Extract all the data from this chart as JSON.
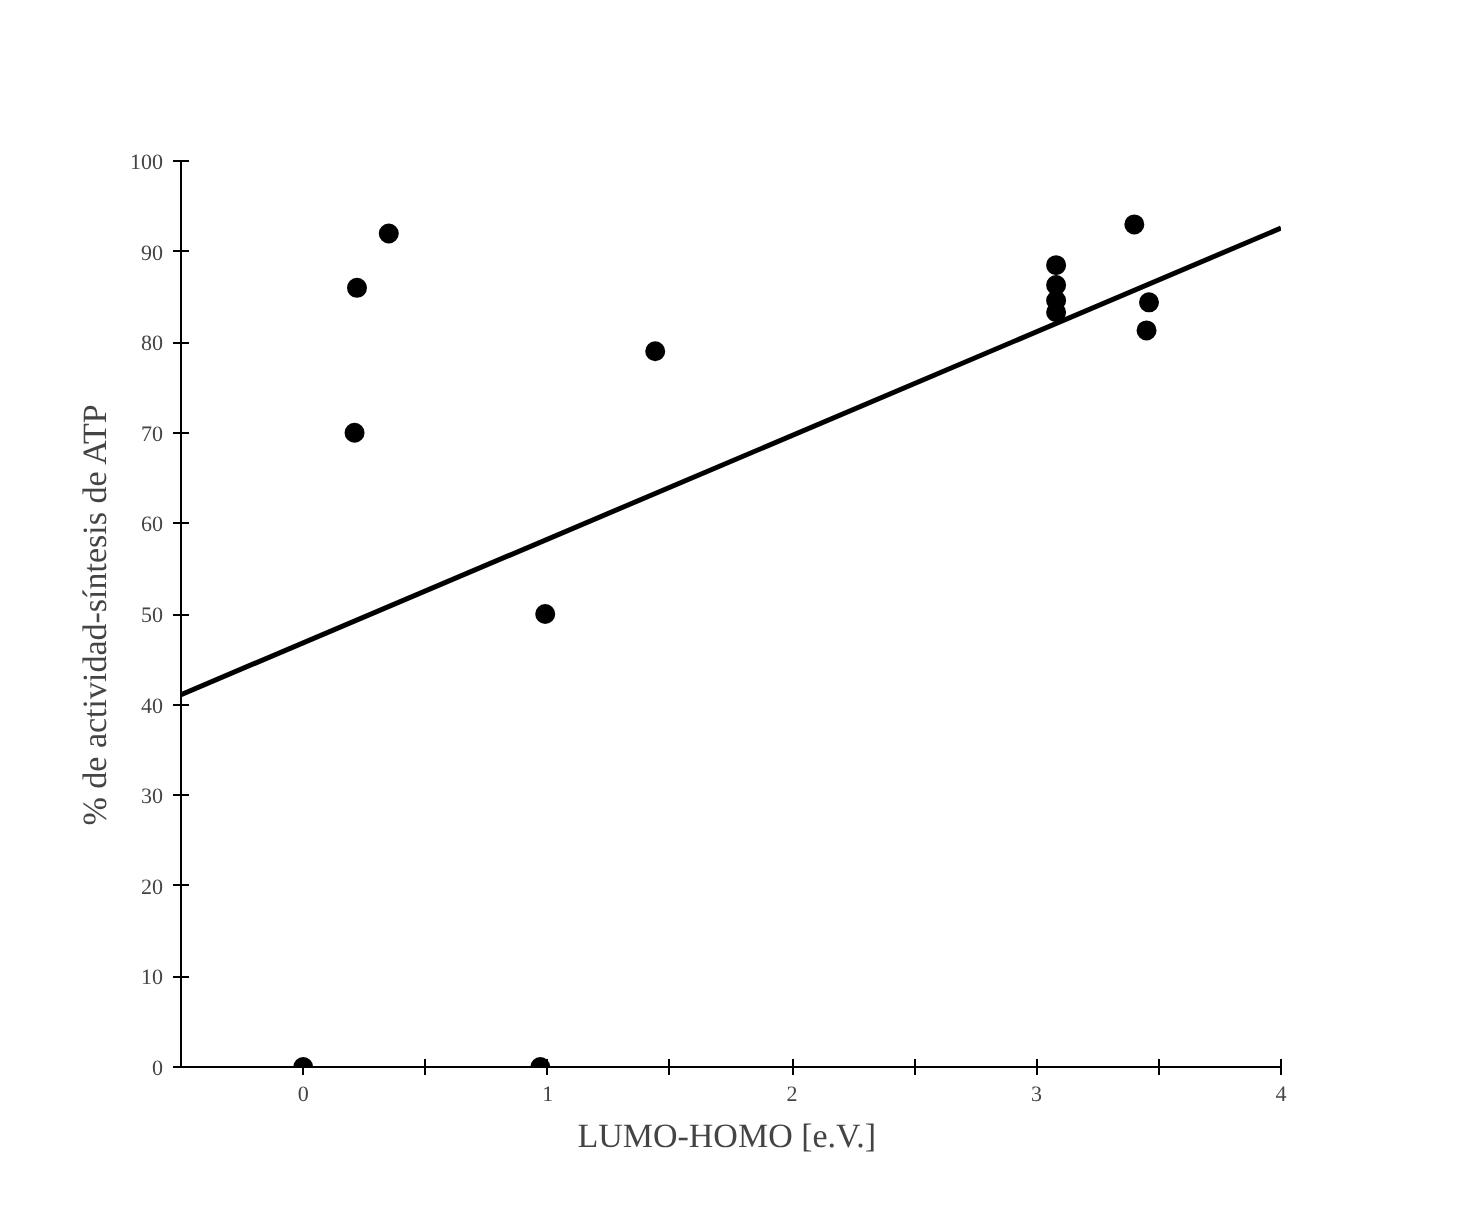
{
  "chart_data": {
    "type": "scatter",
    "xlabel": "LUMO-HOMO  [e.V.]",
    "ylabel": "% de actividad-síntesis de ATP",
    "xlim": [
      -0.5,
      4
    ],
    "ylim": [
      0,
      100
    ],
    "xticks": [
      0,
      {
        "value": 0.5,
        "label": null
      },
      1,
      {
        "value": 1.5,
        "label": null
      },
      2,
      {
        "value": 2.5,
        "label": null
      },
      3,
      {
        "value": 3.5,
        "label": null
      },
      4
    ],
    "yticks": [
      0,
      10,
      20,
      30,
      40,
      50,
      60,
      70,
      80,
      90,
      100
    ],
    "grid": false,
    "marker": "circle",
    "series": [
      {
        "color": "#000000",
        "x": [
          0,
          0.97,
          0.21,
          0.22,
          0.35,
          0.99,
          1.44,
          3.08,
          3.08,
          3.08,
          3.08,
          3.4,
          3.46,
          3.45
        ],
        "values": [
          0,
          0,
          70,
          86,
          92,
          50,
          79,
          88.5,
          86.3,
          84.6,
          83.3,
          93,
          84.4,
          81.3
        ]
      },
      {
        "type": "line",
        "color": "#000000",
        "marker": "none",
        "x": [
          -0.5,
          4
        ],
        "values": [
          41.1,
          92.6
        ]
      }
    ]
  }
}
